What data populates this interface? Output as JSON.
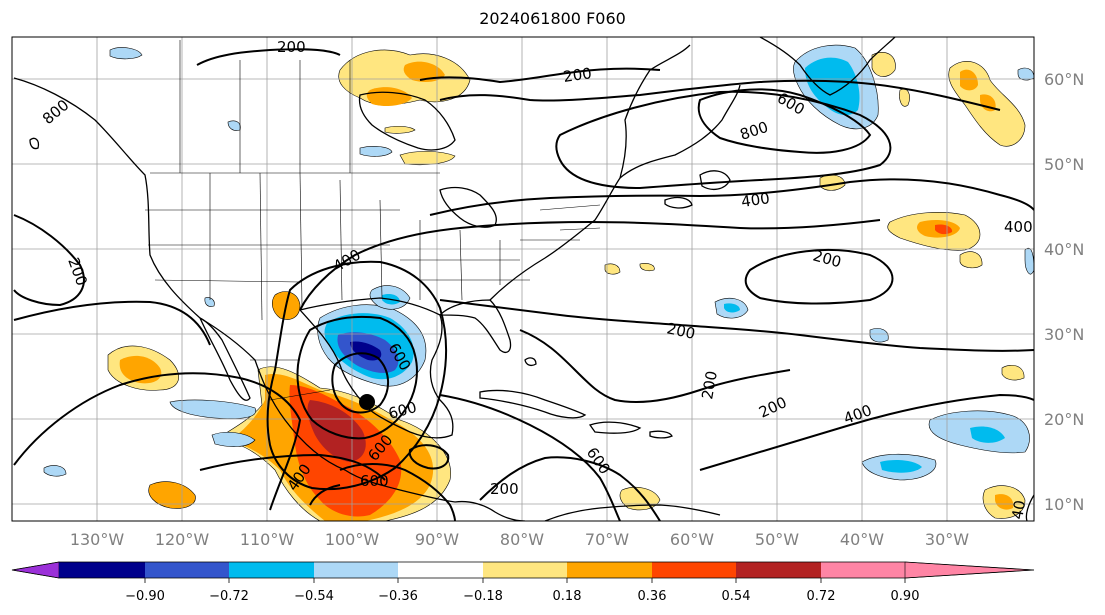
{
  "title": "2024061800 F060",
  "map": {
    "lon_range": [
      -140,
      -18
    ],
    "lat_range": [
      8,
      65
    ],
    "lat_labels": [
      "10°N",
      "20°N",
      "30°N",
      "40°N",
      "50°N",
      "60°N"
    ],
    "lon_labels": [
      "130°W",
      "120°W",
      "110°W",
      "100°W",
      "90°W",
      "80°W",
      "70°W",
      "60°W",
      "50°W",
      "40°W",
      "30°W"
    ],
    "contour_labels": [
      "200",
      "200",
      "200",
      "200",
      "200",
      "200",
      "200",
      "200",
      "400",
      "400",
      "400",
      "400",
      "600",
      "600",
      "600",
      "600",
      "600",
      "600",
      "800",
      "800",
      "400",
      "40"
    ],
    "colors": {
      "neg_090": "#2b0a7a",
      "neg_072": "#00008b",
      "neg_054": "#3355cc",
      "neg_036": "#00bbee",
      "neg_018": "#add8f6",
      "pos_018": "#ffe680",
      "pos_036": "#ffa500",
      "pos_054": "#ff4500",
      "pos_072": "#b22222",
      "pos_090": "#ff85a5",
      "contour": "#000000",
      "coast": "#000000",
      "grid": "#808080"
    }
  },
  "colorbar": {
    "labels": [
      "−0.90",
      "−0.72",
      "−0.54",
      "−0.36",
      "−0.18",
      "0.18",
      "0.36",
      "0.54",
      "0.72",
      "0.90"
    ],
    "colors": [
      "#9b30d8",
      "#00008b",
      "#3355cc",
      "#00bbee",
      "#add8f6",
      "#ffffff",
      "#ffe680",
      "#ffa500",
      "#ff4500",
      "#b22222",
      "#ff85a5"
    ]
  }
}
